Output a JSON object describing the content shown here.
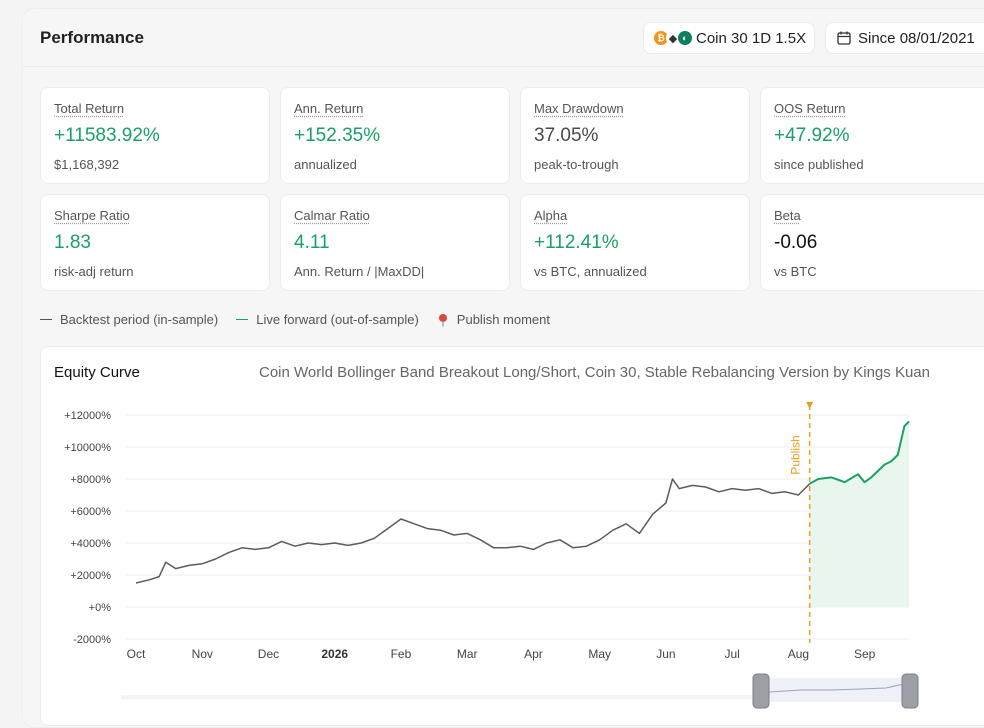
{
  "header": {
    "title": "Performance",
    "strategy_label": "Coin 30 1D 1.5X",
    "since_label": "Since 08/01/2021"
  },
  "stats": [
    {
      "label": "Total Return",
      "value": "+11583.92%",
      "sub": "$1,168,392",
      "tone": "green"
    },
    {
      "label": "Ann. Return",
      "value": "+152.35%",
      "sub": "annualized",
      "tone": "green"
    },
    {
      "label": "Max Drawdown",
      "value": "37.05%",
      "sub": "peak-to-trough",
      "tone": "gray"
    },
    {
      "label": "OOS Return",
      "value": "+47.92%",
      "sub": "since published",
      "tone": "green"
    },
    {
      "label": "Sharpe Ratio",
      "value": "1.83",
      "sub": "risk-adj return",
      "tone": "green"
    },
    {
      "label": "Calmar Ratio",
      "value": "4.11",
      "sub": "Ann. Return / |MaxDD|",
      "tone": "green"
    },
    {
      "label": "Alpha",
      "value": "+112.41%",
      "sub": "vs BTC, annualized",
      "tone": "green"
    },
    {
      "label": "Beta",
      "value": "-0.06",
      "sub": "vs BTC",
      "tone": "dark"
    }
  ],
  "legend": {
    "backtest": "Backtest period (in-sample)",
    "live": "Live forward (out-of-sample)",
    "publish": "Publish moment"
  },
  "chart": {
    "heading": "Equity Curve",
    "subtitle": "Coin World Bollinger Band Breakout Long/Short, Coin 30, Stable Rebalancing Version by Kings Kuan",
    "publish_label": "Publish"
  },
  "colors": {
    "backtest": "#5c5c5c",
    "live": "#1aa064",
    "publish": "#e6a020",
    "live_fill": "#e8f6ee"
  },
  "chart_data": {
    "type": "line",
    "ylim": [
      -2000,
      12000
    ],
    "y_ticks": [
      "+12000%",
      "+10000%",
      "+8000%",
      "+6000%",
      "+4000%",
      "+2000%",
      "+0%",
      "-2000%"
    ],
    "y_tick_values": [
      12000,
      10000,
      8000,
      6000,
      4000,
      2000,
      0,
      -2000
    ],
    "x_ticks": [
      "Oct",
      "Nov",
      "Dec",
      "2026",
      "Feb",
      "Mar",
      "Apr",
      "May",
      "Jun",
      "Jul",
      "Aug",
      "Sep"
    ],
    "xlim": [
      0,
      11.67
    ],
    "publish_x": 10.17,
    "series": [
      {
        "values_x": [
          0,
          0.2,
          0.35,
          0.45,
          0.6,
          0.8,
          1,
          1.2,
          1.4,
          1.6,
          1.8,
          2,
          2.2,
          2.4,
          2.6,
          2.8,
          3,
          3.2,
          3.4,
          3.6,
          3.8,
          4,
          4.2,
          4.4,
          4.6,
          4.8,
          5,
          5.2,
          5.4,
          5.6,
          5.8,
          6,
          6.2,
          6.4,
          6.6,
          6.8,
          7,
          7.2,
          7.4,
          7.6,
          7.8,
          8,
          8.1,
          8.2,
          8.4,
          8.6,
          8.8,
          9,
          9.2,
          9.4,
          9.6,
          9.8,
          10,
          10.17
        ],
        "values_y": [
          1500,
          1700,
          1900,
          2800,
          2400,
          2600,
          2700,
          3000,
          3400,
          3700,
          3600,
          3700,
          4100,
          3800,
          4000,
          3900,
          4000,
          3850,
          4000,
          4300,
          4900,
          5500,
          5200,
          4900,
          4800,
          4500,
          4600,
          4200,
          3700,
          3700,
          3800,
          3600,
          4000,
          4200,
          3700,
          3800,
          4200,
          4800,
          5200,
          4600,
          5800,
          6500,
          8000,
          7400,
          7600,
          7500,
          7200,
          7400,
          7300,
          7400,
          7100,
          7200,
          7000,
          7700
        ]
      },
      {
        "values_x": [
          10.17,
          10.3,
          10.5,
          10.7,
          10.9,
          11.0,
          11.1,
          11.2,
          11.3,
          11.4,
          11.5,
          11.6,
          11.67
        ],
        "values_y": [
          7700,
          8000,
          8100,
          7800,
          8300,
          7800,
          8100,
          8500,
          8900,
          9100,
          9500,
          11300,
          11600
        ]
      }
    ]
  }
}
